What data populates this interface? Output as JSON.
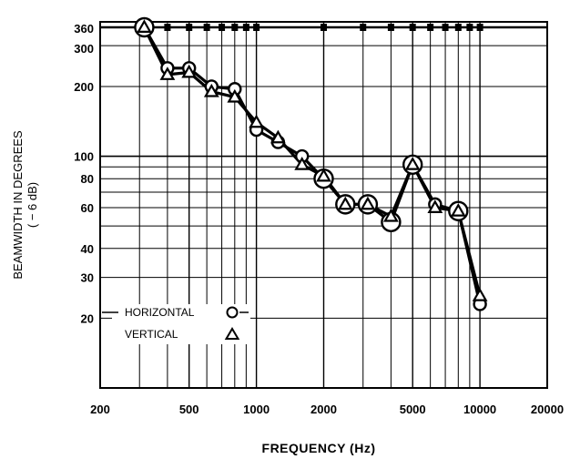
{
  "chart_data": {
    "type": "line",
    "xscale": "log",
    "yscale": "log",
    "xlim": [
      200,
      20000
    ],
    "ylim": [
      10,
      360
    ],
    "grid": true,
    "xlabel": "FREQUENCY (Hz)",
    "ylabel_line1": "BEAMWIDTH IN DEGREES",
    "ylabel_line2": "( − 6 dB)",
    "xticks": [
      {
        "value": 200,
        "label": "200"
      },
      {
        "value": 500,
        "label": "500"
      },
      {
        "value": 1000,
        "label": "1000"
      },
      {
        "value": 2000,
        "label": "2000"
      },
      {
        "value": 5000,
        "label": "5000"
      },
      {
        "value": 10000,
        "label": "10000"
      },
      {
        "value": 20000,
        "label": "20000"
      }
    ],
    "yticks": [
      {
        "value": 20,
        "label": "20"
      },
      {
        "value": 30,
        "label": "30"
      },
      {
        "value": 40,
        "label": "40"
      },
      {
        "value": 60,
        "label": "60"
      },
      {
        "value": 80,
        "label": "80"
      },
      {
        "value": 100,
        "label": "100"
      },
      {
        "value": 200,
        "label": "200"
      },
      {
        "value": 300,
        "label": "300"
      },
      {
        "value": 360,
        "label": "360"
      }
    ],
    "legend": {
      "placement": "bottom-left",
      "entries": [
        {
          "label": "HORIZONTAL",
          "marker": "circle"
        },
        {
          "label": "VERTICAL",
          "marker": "triangle"
        }
      ]
    },
    "series": [
      {
        "name": "HORIZONTAL",
        "marker": "circle",
        "points": [
          {
            "x": 315,
            "y": 360
          },
          {
            "x": 400,
            "y": 240
          },
          {
            "x": 500,
            "y": 240
          },
          {
            "x": 630,
            "y": 200
          },
          {
            "x": 800,
            "y": 195
          },
          {
            "x": 1000,
            "y": 130
          },
          {
            "x": 1250,
            "y": 115
          },
          {
            "x": 1600,
            "y": 100
          },
          {
            "x": 2000,
            "y": 80
          },
          {
            "x": 2500,
            "y": 62
          },
          {
            "x": 3150,
            "y": 62
          },
          {
            "x": 4000,
            "y": 52
          },
          {
            "x": 5000,
            "y": 92
          },
          {
            "x": 6300,
            "y": 62
          },
          {
            "x": 8000,
            "y": 58
          },
          {
            "x": 10000,
            "y": 23
          }
        ]
      },
      {
        "name": "VERTICAL",
        "marker": "triangle",
        "points": [
          {
            "x": 315,
            "y": 360
          },
          {
            "x": 400,
            "y": 225
          },
          {
            "x": 500,
            "y": 230
          },
          {
            "x": 630,
            "y": 190
          },
          {
            "x": 800,
            "y": 180
          },
          {
            "x": 1000,
            "y": 140
          },
          {
            "x": 1250,
            "y": 120
          },
          {
            "x": 1600,
            "y": 92
          },
          {
            "x": 2000,
            "y": 82
          },
          {
            "x": 2500,
            "y": 62
          },
          {
            "x": 3150,
            "y": 62
          },
          {
            "x": 4000,
            "y": 55
          },
          {
            "x": 5000,
            "y": 92
          },
          {
            "x": 6300,
            "y": 60
          },
          {
            "x": 8000,
            "y": 58
          },
          {
            "x": 10000,
            "y": 25
          }
        ]
      }
    ]
  }
}
